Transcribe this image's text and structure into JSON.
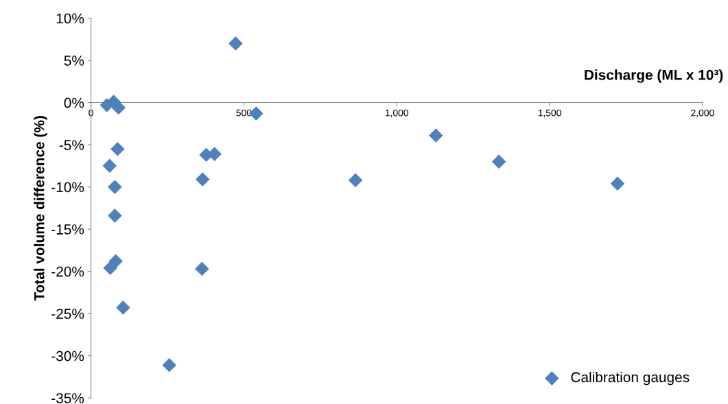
{
  "chart_data": {
    "type": "scatter",
    "xlabel": "Discharge (ML x 10³)",
    "ylabel": "Total volume difference (%)",
    "x": [
      473,
      52,
      74,
      90,
      540,
      1128,
      87,
      377,
      404,
      1334,
      61,
      365,
      865,
      1722,
      78,
      78,
      81,
      63,
      363,
      105,
      256
    ],
    "series": [
      {
        "name": "Calibration gauges",
        "color": "#4f81bd",
        "values": [
          7.0,
          -0.3,
          0.1,
          -0.6,
          -1.3,
          -3.9,
          -5.5,
          -6.2,
          -6.1,
          -7.0,
          -7.5,
          -9.1,
          -9.2,
          -9.6,
          -10.0,
          -13.4,
          -18.8,
          -19.6,
          -19.7,
          -24.3,
          -31.1
        ]
      }
    ],
    "xlim": [
      0,
      2000
    ],
    "xticks": [
      0,
      {
        "value": 500,
        "label": "500"
      },
      {
        "value": 1000,
        "label": "1,000"
      },
      {
        "value": 1500,
        "label": "1,500"
      },
      {
        "value": 2000,
        "label": "2,000"
      }
    ],
    "ylim": [
      -35,
      10
    ],
    "yticks": [
      {
        "value": -35,
        "label": "-35%"
      },
      {
        "value": -30,
        "label": "-30%"
      },
      {
        "value": -25,
        "label": "-25%"
      },
      {
        "value": -20,
        "label": "-20%"
      },
      {
        "value": -15,
        "label": "-15%"
      },
      {
        "value": -10,
        "label": "-10%"
      },
      {
        "value": -5,
        "label": "-5%"
      },
      {
        "value": 0,
        "label": "0%"
      },
      {
        "value": 5,
        "label": "5%"
      },
      {
        "value": 10,
        "label": "10%"
      }
    ],
    "marker": "diamond",
    "grid": false,
    "legend": "bottom right"
  }
}
